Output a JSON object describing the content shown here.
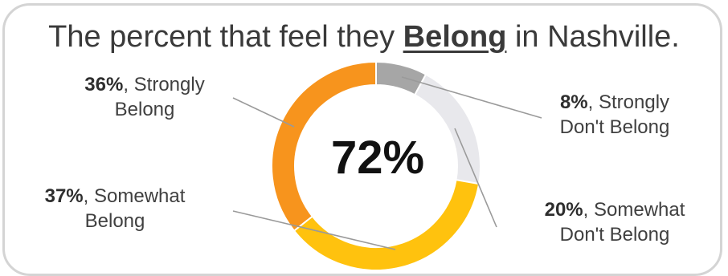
{
  "title": {
    "before": "The percent that feel they ",
    "emphasis": "Belong",
    "after": " in Nashville."
  },
  "center_value": "72%",
  "chart_data": {
    "type": "pie",
    "variant": "donut",
    "title": "The percent that feel they Belong in Nashville.",
    "center_label": "72%",
    "slices": [
      {
        "label": "Strongly Don't Belong",
        "value": 8,
        "color": "#a6a6a6"
      },
      {
        "label": "Somewhat Don't Belong",
        "value": 20,
        "color": "#e8e8ec"
      },
      {
        "label": "Somewhat Belong",
        "value": 37,
        "color": "#ffc20e"
      },
      {
        "label": "Strongly Belong",
        "value": 36,
        "color": "#f7941d"
      }
    ]
  },
  "labels": {
    "strongly_belong": {
      "pct": "36%",
      "line1": ", Strongly",
      "line2": "Belong"
    },
    "somewhat_belong": {
      "pct": "37%",
      "line1": ", Somewhat",
      "line2": "Belong"
    },
    "strongly_dont": {
      "pct": "8%",
      "line1": ", Strongly",
      "line2": "Don't Belong"
    },
    "somewhat_dont": {
      "pct": "20%",
      "line1": ", Somewhat",
      "line2": "Don't Belong"
    }
  }
}
